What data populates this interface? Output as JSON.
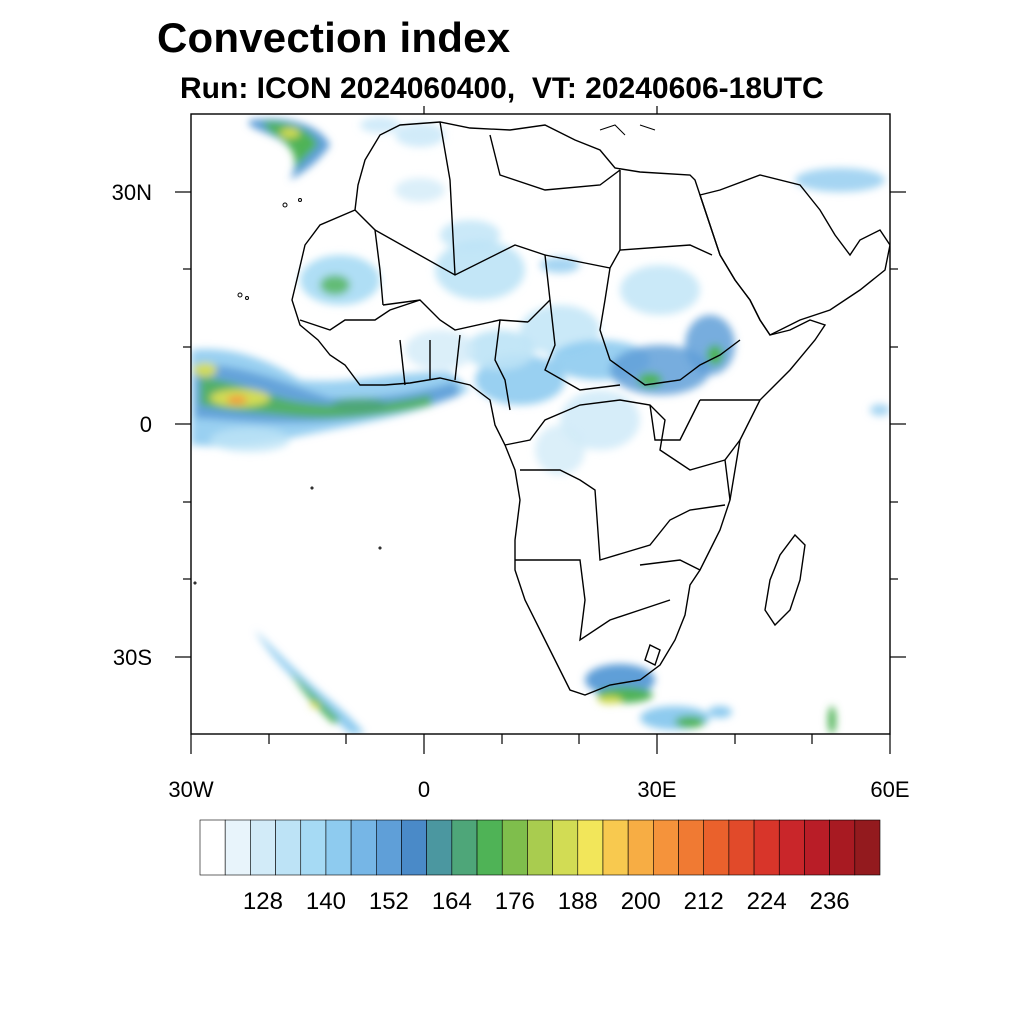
{
  "title": "Convection index",
  "subtitle": "Run: ICON 2024060400,  VT: 20240606-18UTC",
  "lat_labels": [
    "30N",
    "0",
    "30S"
  ],
  "lon_labels": [
    "30W",
    "0",
    "30E",
    "60E"
  ],
  "colorbar": {
    "labels": [
      "128",
      "140",
      "152",
      "164",
      "176",
      "188",
      "200",
      "212",
      "224",
      "236"
    ],
    "colors": [
      "#ffffff",
      "#e8f4fb",
      "#d2ebf8",
      "#bde3f6",
      "#a6daf4",
      "#8ecbef",
      "#76b6e6",
      "#5f9fd8",
      "#4a8ac8",
      "#4b97a0",
      "#4ea679",
      "#4fb356",
      "#7fbe4c",
      "#a9cc4f",
      "#d2dc54",
      "#f2e65a",
      "#f8c94f",
      "#f7ad44",
      "#f5933b",
      "#f07a33",
      "#ea612c",
      "#e14a2a",
      "#d8352a",
      "#c9262a",
      "#b91d27",
      "#a81a22",
      "#931a1e"
    ]
  }
}
